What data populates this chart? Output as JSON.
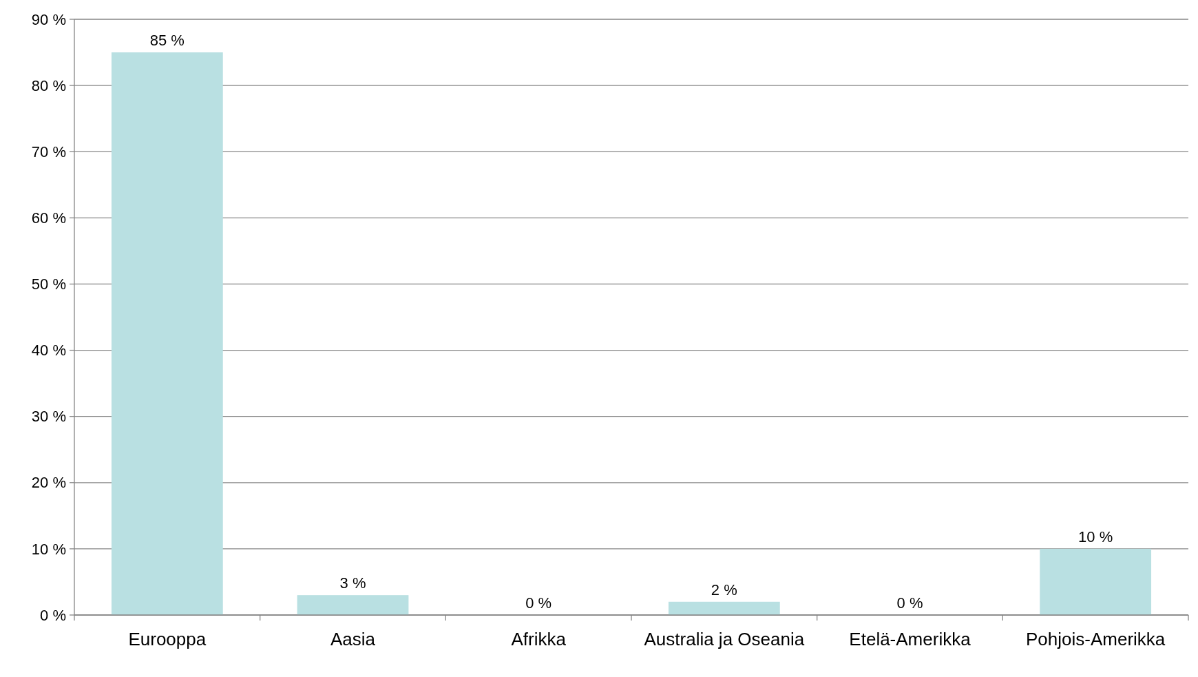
{
  "chart_data": {
    "type": "bar",
    "categories": [
      "Eurooppa",
      "Aasia",
      "Afrikka",
      "Australia ja Oseania",
      "Etelä-Amerikka",
      "Pohjois-Amerikka"
    ],
    "values": [
      85,
      3,
      0,
      2,
      0,
      10
    ],
    "color": "#b9e0e2",
    "value_labels": [
      "85 %",
      "3 %",
      "0 %",
      "2 %",
      "0 %",
      "10 %"
    ],
    "ylim": [
      0,
      90
    ],
    "yticks": [
      {
        "value": 0,
        "label": "0 %"
      },
      {
        "value": 10,
        "label": "10 %"
      },
      {
        "value": 20,
        "label": "20 %"
      },
      {
        "value": 30,
        "label": "30 %"
      },
      {
        "value": 40,
        "label": "40 %"
      },
      {
        "value": 50,
        "label": "50 %"
      },
      {
        "value": 60,
        "label": "60 %"
      },
      {
        "value": 70,
        "label": "70 %"
      },
      {
        "value": 80,
        "label": "80 %"
      },
      {
        "value": 90,
        "label": "90 %"
      }
    ],
    "grid": "y"
  }
}
